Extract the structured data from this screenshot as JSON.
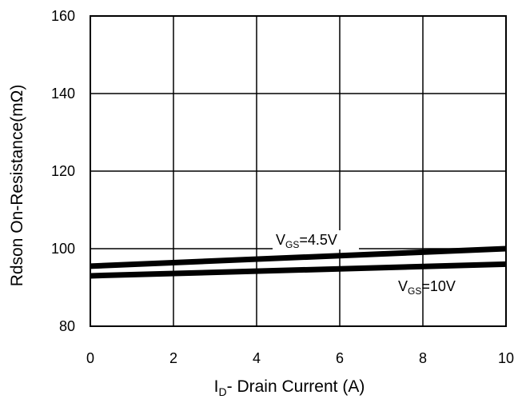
{
  "chart_data": {
    "type": "line",
    "xlabel": {
      "main": "I",
      "sub": "D",
      "rest": "- Drain Current (A)"
    },
    "ylabel": "Rdson On-Resistance(mΩ)",
    "xlim": [
      0,
      10
    ],
    "ylim": [
      80,
      160
    ],
    "xticks": [
      0,
      2,
      4,
      6,
      8,
      10
    ],
    "yticks": [
      80,
      100,
      120,
      140,
      160
    ],
    "grid": true,
    "series": [
      {
        "name": "VGS=4.5V",
        "color": "#000000",
        "x": [
          0,
          10
        ],
        "y": [
          95.5,
          100
        ]
      },
      {
        "name": "VGS=10V",
        "color": "#000000",
        "x": [
          0,
          10
        ],
        "y": [
          93,
          96
        ]
      }
    ],
    "annotations": [
      {
        "main": "V",
        "sub": "GS",
        "rest": "=4.5V",
        "series": 0
      },
      {
        "main": "V",
        "sub": "GS",
        "rest": "=10V",
        "series": 1
      }
    ]
  }
}
